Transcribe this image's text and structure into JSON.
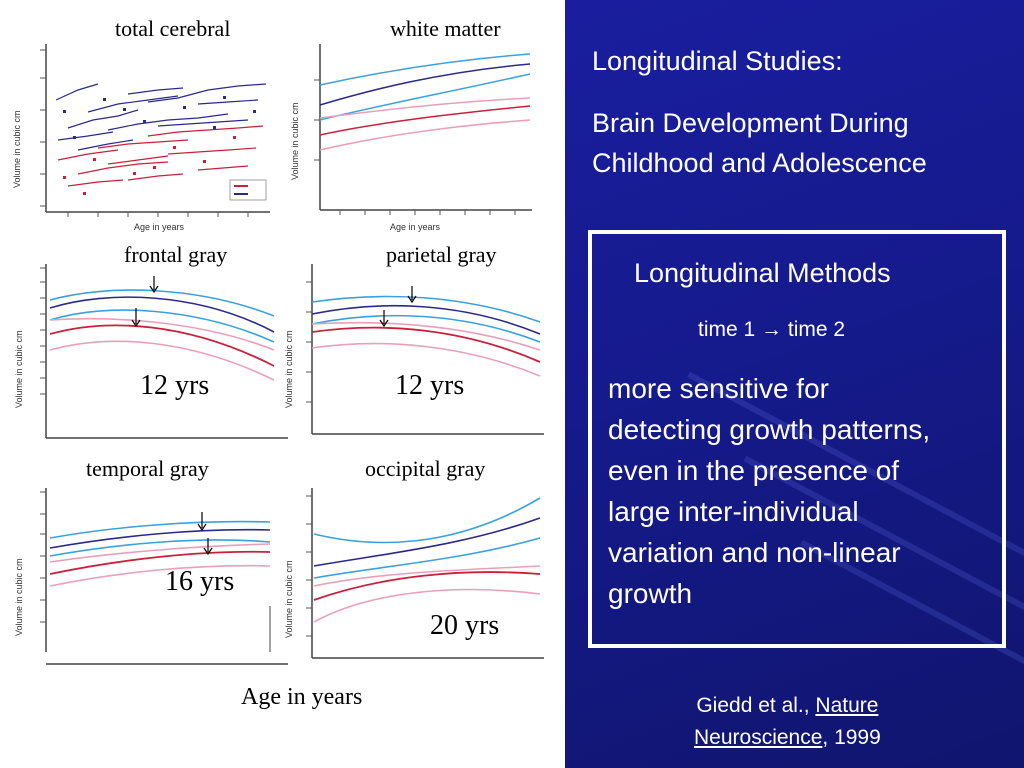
{
  "slide": {
    "title_line1": "Longitudinal Studies:",
    "title_line2": "Brain Development During",
    "title_line3": "Childhood and Adolescence"
  },
  "methods_box": {
    "heading": "Longitudinal Methods",
    "time_1": "time 1",
    "arrow": "→",
    "time_2": "time 2",
    "body_lines": [
      "more sensitive for",
      "detecting growth patterns,",
      "even in the presence of",
      "large inter-individual",
      "variation and non-linear",
      "growth"
    ]
  },
  "citation": {
    "authors": "Giedd et al., ",
    "journal_line1": "Nature",
    "journal_line2": "Neuroscience",
    "year": ", 1999"
  },
  "figure": {
    "panels": [
      {
        "title": "total cerebral",
        "peak": ""
      },
      {
        "title": "white matter",
        "peak": ""
      },
      {
        "title": "frontal gray",
        "peak": "12 yrs"
      },
      {
        "title": "parietal gray",
        "peak": "12 yrs"
      },
      {
        "title": "temporal gray",
        "peak": "16 yrs"
      },
      {
        "title": "occipital gray",
        "peak": "20 yrs"
      }
    ],
    "y_axis_label": "Volume in cubic cm",
    "x_axis_label_small": "Age in years",
    "x_axis_label": "Age in years"
  },
  "colors": {
    "background": "#1a1f9a",
    "dark_blue": "#2a2a8c",
    "light_blue": "#3aa0e0",
    "red": "#cc1f3a",
    "pink": "#e8a0b8"
  }
}
